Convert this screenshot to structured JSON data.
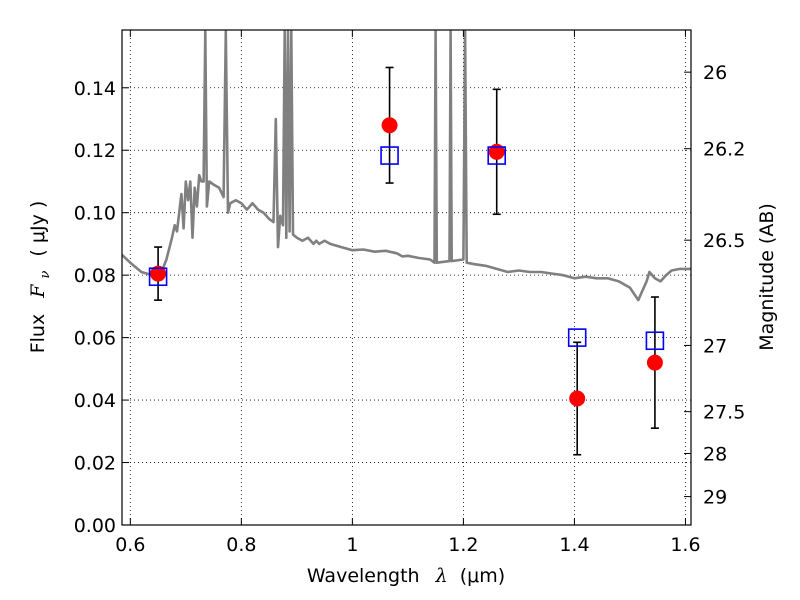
{
  "chart_data": {
    "type": "scatter",
    "xlabel": "Wavelength",
    "xlabel_symbol": "λ",
    "xlabel_unit": "(μm)",
    "ylabel": "Flux",
    "ylabel_symbol": "F",
    "ylabel_subscript": "ν",
    "ylabel_unit": "( μJy )",
    "y2label": "Magnitude (AB)",
    "xlim": [
      0.585,
      1.61
    ],
    "ylim": [
      0.0,
      0.1585
    ],
    "x_ticks": [
      0.6,
      0.8,
      1.0,
      1.2,
      1.4,
      1.6
    ],
    "x_tick_labels": [
      "0.6",
      "0.8",
      "1",
      "1.2",
      "1.4",
      "1.6"
    ],
    "y_ticks": [
      0.0,
      0.02,
      0.04,
      0.06,
      0.08,
      0.1,
      0.12,
      0.14
    ],
    "y_tick_labels": [
      "0.00",
      "0.02",
      "0.04",
      "0.06",
      "0.08",
      "0.10",
      "0.12",
      "0.14"
    ],
    "y2_ticks": [
      {
        "flux": 0.145,
        "label": "26"
      },
      {
        "flux": 0.1205,
        "label": "26.2"
      },
      {
        "flux": 0.0912,
        "label": "26.5"
      },
      {
        "flux": 0.0575,
        "label": "27"
      },
      {
        "flux": 0.0363,
        "label": "27.5"
      },
      {
        "flux": 0.0229,
        "label": "28"
      },
      {
        "flux": 0.0091,
        "label": "29"
      }
    ],
    "grid": true,
    "colors": {
      "model": "#808080",
      "observed": "#ff0000",
      "model_photometry": "#0000ff",
      "errorbar": "#000000"
    },
    "series": [
      {
        "name": "observed",
        "marker": "circle",
        "points": [
          {
            "x": 0.65,
            "y": 0.0805,
            "err": 0.0085
          },
          {
            "x": 1.067,
            "y": 0.128,
            "err": 0.0185
          },
          {
            "x": 1.26,
            "y": 0.1195,
            "err": 0.02
          },
          {
            "x": 1.405,
            "y": 0.0405,
            "err": 0.018
          },
          {
            "x": 1.545,
            "y": 0.052,
            "err": 0.021
          }
        ]
      },
      {
        "name": "model_photometry",
        "marker": "open-square",
        "points": [
          {
            "x": 0.65,
            "y": 0.0795
          },
          {
            "x": 1.067,
            "y": 0.1183
          },
          {
            "x": 1.26,
            "y": 0.1183
          },
          {
            "x": 1.405,
            "y": 0.06
          },
          {
            "x": 1.545,
            "y": 0.059
          }
        ]
      },
      {
        "name": "model_spectrum",
        "type": "line",
        "points": [
          [
            0.585,
            0.0865
          ],
          [
            0.6,
            0.084
          ],
          [
            0.62,
            0.081
          ],
          [
            0.64,
            0.08
          ],
          [
            0.655,
            0.0805
          ],
          [
            0.665,
            0.085
          ],
          [
            0.675,
            0.092
          ],
          [
            0.68,
            0.096
          ],
          [
            0.684,
            0.094
          ],
          [
            0.688,
            0.1
          ],
          [
            0.692,
            0.106
          ],
          [
            0.696,
            0.095
          ],
          [
            0.7,
            0.11
          ],
          [
            0.704,
            0.104
          ],
          [
            0.708,
            0.11
          ],
          [
            0.712,
            0.092
          ],
          [
            0.716,
            0.108
          ],
          [
            0.72,
            0.102
          ],
          [
            0.724,
            0.112
          ],
          [
            0.728,
            0.11
          ],
          [
            0.732,
            0.11
          ],
          [
            0.735,
            0.158
          ],
          [
            0.738,
            0.102
          ],
          [
            0.742,
            0.11
          ],
          [
            0.75,
            0.109
          ],
          [
            0.76,
            0.108
          ],
          [
            0.768,
            0.105
          ],
          [
            0.772,
            0.158
          ],
          [
            0.776,
            0.1
          ],
          [
            0.78,
            0.103
          ],
          [
            0.79,
            0.104
          ],
          [
            0.8,
            0.103
          ],
          [
            0.81,
            0.101
          ],
          [
            0.82,
            0.103
          ],
          [
            0.83,
            0.101
          ],
          [
            0.84,
            0.1
          ],
          [
            0.85,
            0.098
          ],
          [
            0.858,
            0.097
          ],
          [
            0.862,
            0.13
          ],
          [
            0.866,
            0.089
          ],
          [
            0.87,
            0.099
          ],
          [
            0.875,
            0.096
          ],
          [
            0.878,
            0.158
          ],
          [
            0.881,
            0.092
          ],
          [
            0.884,
            0.158
          ],
          [
            0.887,
            0.094
          ],
          [
            0.89,
            0.158
          ],
          [
            0.893,
            0.093
          ],
          [
            0.9,
            0.092
          ],
          [
            0.91,
            0.091
          ],
          [
            0.92,
            0.092
          ],
          [
            0.93,
            0.09
          ],
          [
            0.935,
            0.091
          ],
          [
            0.94,
            0.09
          ],
          [
            0.95,
            0.091
          ],
          [
            0.96,
            0.09
          ],
          [
            0.97,
            0.0895
          ],
          [
            0.98,
            0.089
          ],
          [
            0.99,
            0.0885
          ],
          [
            1.0,
            0.088
          ],
          [
            1.02,
            0.0882
          ],
          [
            1.04,
            0.0875
          ],
          [
            1.06,
            0.0878
          ],
          [
            1.08,
            0.087
          ],
          [
            1.09,
            0.086
          ],
          [
            1.1,
            0.0862
          ],
          [
            1.12,
            0.0855
          ],
          [
            1.14,
            0.085
          ],
          [
            1.148,
            0.084
          ],
          [
            1.15,
            0.158
          ],
          [
            1.152,
            0.084
          ],
          [
            1.175,
            0.0845
          ],
          [
            1.177,
            0.158
          ],
          [
            1.179,
            0.0845
          ],
          [
            1.2,
            0.085
          ],
          [
            1.203,
            0.158
          ],
          [
            1.206,
            0.084
          ],
          [
            1.22,
            0.0835
          ],
          [
            1.24,
            0.083
          ],
          [
            1.26,
            0.082
          ],
          [
            1.28,
            0.081
          ],
          [
            1.3,
            0.0815
          ],
          [
            1.32,
            0.081
          ],
          [
            1.34,
            0.081
          ],
          [
            1.36,
            0.0805
          ],
          [
            1.38,
            0.08
          ],
          [
            1.4,
            0.079
          ],
          [
            1.42,
            0.0795
          ],
          [
            1.44,
            0.079
          ],
          [
            1.46,
            0.079
          ],
          [
            1.48,
            0.078
          ],
          [
            1.5,
            0.076
          ],
          [
            1.515,
            0.072
          ],
          [
            1.52,
            0.074
          ],
          [
            1.53,
            0.078
          ],
          [
            1.535,
            0.081
          ],
          [
            1.545,
            0.079
          ],
          [
            1.555,
            0.078
          ],
          [
            1.565,
            0.08
          ],
          [
            1.575,
            0.0815
          ],
          [
            1.59,
            0.082
          ],
          [
            1.61,
            0.082
          ]
        ]
      }
    ]
  }
}
